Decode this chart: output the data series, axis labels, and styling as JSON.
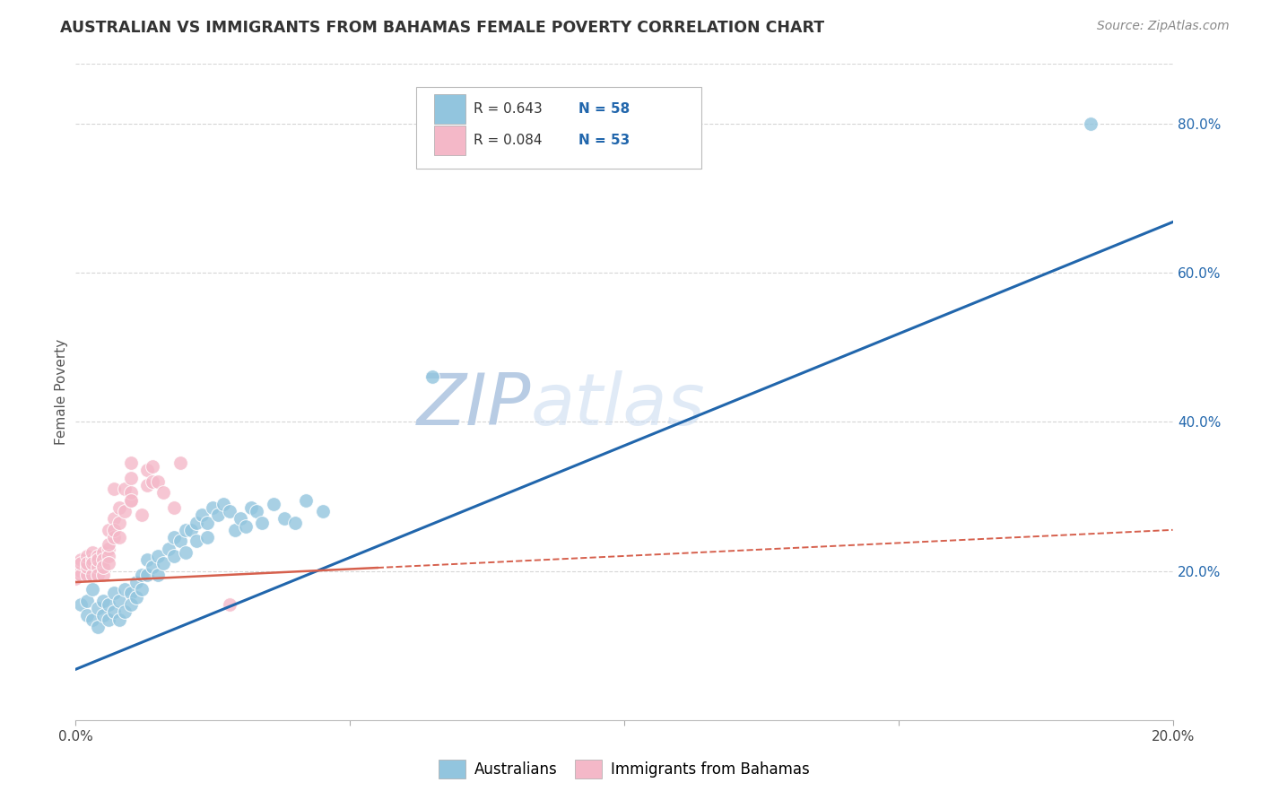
{
  "title": "AUSTRALIAN VS IMMIGRANTS FROM BAHAMAS FEMALE POVERTY CORRELATION CHART",
  "source": "Source: ZipAtlas.com",
  "ylabel": "Female Poverty",
  "watermark_zip": "ZIP",
  "watermark_atlas": "atlas",
  "legend_r_blue": "R = 0.643",
  "legend_n_blue": "N = 58",
  "legend_r_pink": "R = 0.084",
  "legend_n_pink": "N = 53",
  "blue_scatter_color": "#92c5de",
  "pink_scatter_color": "#f4b8c8",
  "blue_line_color": "#2166ac",
  "pink_line_color": "#d6604d",
  "watermark_color": "#c8d8ee",
  "background_color": "#ffffff",
  "grid_color": "#cccccc",
  "title_color": "#333333",
  "source_color": "#888888",
  "axis_label_color": "#555555",
  "right_tick_color": "#2166ac",
  "xlim": [
    0.0,
    0.2
  ],
  "ylim": [
    0.0,
    0.88
  ],
  "ytick_positions": [
    0.2,
    0.4,
    0.6,
    0.8
  ],
  "ytick_labels": [
    "20.0%",
    "40.0%",
    "60.0%",
    "80.0%"
  ],
  "xtick_positions": [
    0.0,
    0.05,
    0.1,
    0.15,
    0.2
  ],
  "xtick_labels": [
    "0.0%",
    "",
    "",
    "",
    "20.0%"
  ],
  "aus_line_x": [
    0.0,
    0.2
  ],
  "aus_line_y": [
    0.068,
    0.668
  ],
  "bah_line_x": [
    0.0,
    0.2
  ],
  "bah_line_y": [
    0.185,
    0.255
  ],
  "aus_scatter": [
    [
      0.001,
      0.155
    ],
    [
      0.002,
      0.16
    ],
    [
      0.002,
      0.14
    ],
    [
      0.003,
      0.175
    ],
    [
      0.003,
      0.135
    ],
    [
      0.004,
      0.15
    ],
    [
      0.004,
      0.125
    ],
    [
      0.005,
      0.16
    ],
    [
      0.005,
      0.14
    ],
    [
      0.006,
      0.155
    ],
    [
      0.006,
      0.135
    ],
    [
      0.007,
      0.17
    ],
    [
      0.007,
      0.145
    ],
    [
      0.008,
      0.16
    ],
    [
      0.008,
      0.135
    ],
    [
      0.009,
      0.175
    ],
    [
      0.009,
      0.145
    ],
    [
      0.01,
      0.17
    ],
    [
      0.01,
      0.155
    ],
    [
      0.011,
      0.185
    ],
    [
      0.011,
      0.165
    ],
    [
      0.012,
      0.195
    ],
    [
      0.012,
      0.175
    ],
    [
      0.013,
      0.215
    ],
    [
      0.013,
      0.195
    ],
    [
      0.014,
      0.205
    ],
    [
      0.015,
      0.22
    ],
    [
      0.015,
      0.195
    ],
    [
      0.016,
      0.21
    ],
    [
      0.017,
      0.23
    ],
    [
      0.018,
      0.245
    ],
    [
      0.018,
      0.22
    ],
    [
      0.019,
      0.24
    ],
    [
      0.02,
      0.255
    ],
    [
      0.02,
      0.225
    ],
    [
      0.021,
      0.255
    ],
    [
      0.022,
      0.265
    ],
    [
      0.022,
      0.24
    ],
    [
      0.023,
      0.275
    ],
    [
      0.024,
      0.265
    ],
    [
      0.024,
      0.245
    ],
    [
      0.025,
      0.285
    ],
    [
      0.026,
      0.275
    ],
    [
      0.027,
      0.29
    ],
    [
      0.028,
      0.28
    ],
    [
      0.029,
      0.255
    ],
    [
      0.03,
      0.27
    ],
    [
      0.031,
      0.26
    ],
    [
      0.032,
      0.285
    ],
    [
      0.033,
      0.28
    ],
    [
      0.034,
      0.265
    ],
    [
      0.036,
      0.29
    ],
    [
      0.038,
      0.27
    ],
    [
      0.04,
      0.265
    ],
    [
      0.042,
      0.295
    ],
    [
      0.045,
      0.28
    ],
    [
      0.065,
      0.46
    ],
    [
      0.185,
      0.8
    ]
  ],
  "bah_scatter": [
    [
      0.0,
      0.19
    ],
    [
      0.0,
      0.21
    ],
    [
      0.0,
      0.2
    ],
    [
      0.0,
      0.195
    ],
    [
      0.001,
      0.2
    ],
    [
      0.001,
      0.215
    ],
    [
      0.001,
      0.195
    ],
    [
      0.001,
      0.21
    ],
    [
      0.002,
      0.195
    ],
    [
      0.002,
      0.205
    ],
    [
      0.002,
      0.22
    ],
    [
      0.002,
      0.21
    ],
    [
      0.003,
      0.215
    ],
    [
      0.003,
      0.195
    ],
    [
      0.003,
      0.225
    ],
    [
      0.003,
      0.21
    ],
    [
      0.004,
      0.22
    ],
    [
      0.004,
      0.205
    ],
    [
      0.004,
      0.195
    ],
    [
      0.004,
      0.215
    ],
    [
      0.005,
      0.225
    ],
    [
      0.005,
      0.215
    ],
    [
      0.005,
      0.195
    ],
    [
      0.005,
      0.205
    ],
    [
      0.006,
      0.23
    ],
    [
      0.006,
      0.22
    ],
    [
      0.006,
      0.21
    ],
    [
      0.006,
      0.235
    ],
    [
      0.006,
      0.255
    ],
    [
      0.007,
      0.245
    ],
    [
      0.007,
      0.27
    ],
    [
      0.007,
      0.31
    ],
    [
      0.007,
      0.255
    ],
    [
      0.008,
      0.285
    ],
    [
      0.008,
      0.265
    ],
    [
      0.008,
      0.245
    ],
    [
      0.009,
      0.31
    ],
    [
      0.009,
      0.28
    ],
    [
      0.01,
      0.295
    ],
    [
      0.01,
      0.325
    ],
    [
      0.01,
      0.345
    ],
    [
      0.01,
      0.305
    ],
    [
      0.01,
      0.295
    ],
    [
      0.012,
      0.275
    ],
    [
      0.013,
      0.335
    ],
    [
      0.013,
      0.315
    ],
    [
      0.014,
      0.34
    ],
    [
      0.014,
      0.32
    ],
    [
      0.015,
      0.32
    ],
    [
      0.016,
      0.305
    ],
    [
      0.018,
      0.285
    ],
    [
      0.019,
      0.345
    ],
    [
      0.028,
      0.155
    ]
  ]
}
